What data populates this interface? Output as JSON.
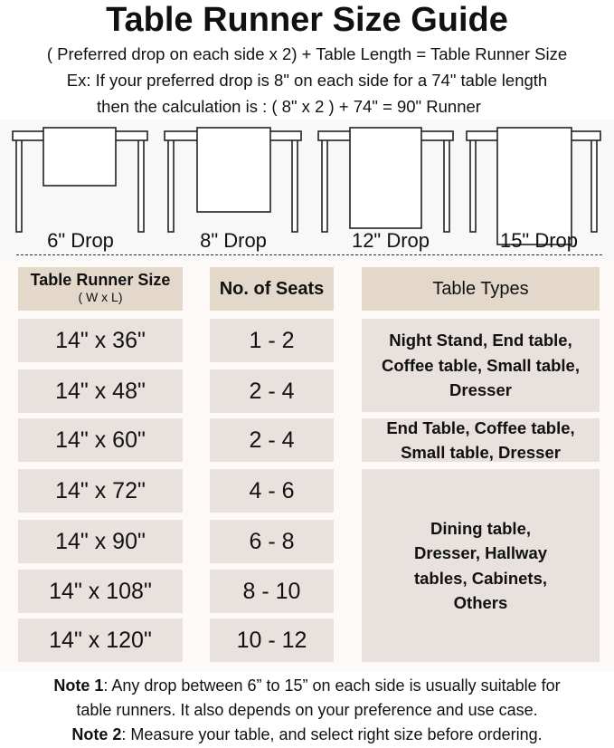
{
  "title": "Table Runner Size Guide",
  "formula": "( Preferred drop on each side x 2) + Table Length = Table Runner Size",
  "example_line1": "Ex: If your preferred drop is 8\" on each side for a 74\" table length",
  "example_line2": "then the calculation is : ( 8\" x 2 ) + 74\" = 90\" Runner",
  "drops": [
    {
      "label": "6\" Drop",
      "inches": 6
    },
    {
      "label": "8\" Drop",
      "inches": 8
    },
    {
      "label": "12\" Drop",
      "inches": 12
    },
    {
      "label": "15\" Drop",
      "inches": 15
    }
  ],
  "table": {
    "headers": {
      "size": "Table Runner Size",
      "size_sub": "( W x L)",
      "seats": "No. of Seats",
      "types": "Table Types"
    },
    "rows": [
      {
        "size": "14\" x 36\"",
        "seats": "1 - 2"
      },
      {
        "size": "14\" x 48\"",
        "seats": "2 - 4"
      },
      {
        "size": "14\" x 60\"",
        "seats": "2 - 4"
      },
      {
        "size": "14\" x 72\"",
        "seats": "4 - 6"
      },
      {
        "size": "14\" x 90\"",
        "seats": "6 - 8"
      },
      {
        "size": "14\" x 108\"",
        "seats": "8 - 10"
      },
      {
        "size": "14\" x 120\"",
        "seats": "10 - 12"
      }
    ],
    "types": [
      "Night Stand, End table, Coffee table, Small table, Dresser",
      "End Table, Coffee table, Small table, Dresser",
      "Dining table, Dresser, Hallway tables, Cabinets, Others"
    ]
  },
  "notes": {
    "note1_label": "Note 1",
    "note1_text": ": Any drop between 6” to 15” on each side is usually suitable for",
    "note1_text2": "table runners. It also depends on your preference and use case.",
    "note2_label": "Note 2",
    "note2_text": ": Measure your table, and select right size before ordering."
  },
  "colors": {
    "header_cell": "#e3d8ca",
    "body_cell": "#e8e1dd",
    "background": "#fcf9f6"
  }
}
